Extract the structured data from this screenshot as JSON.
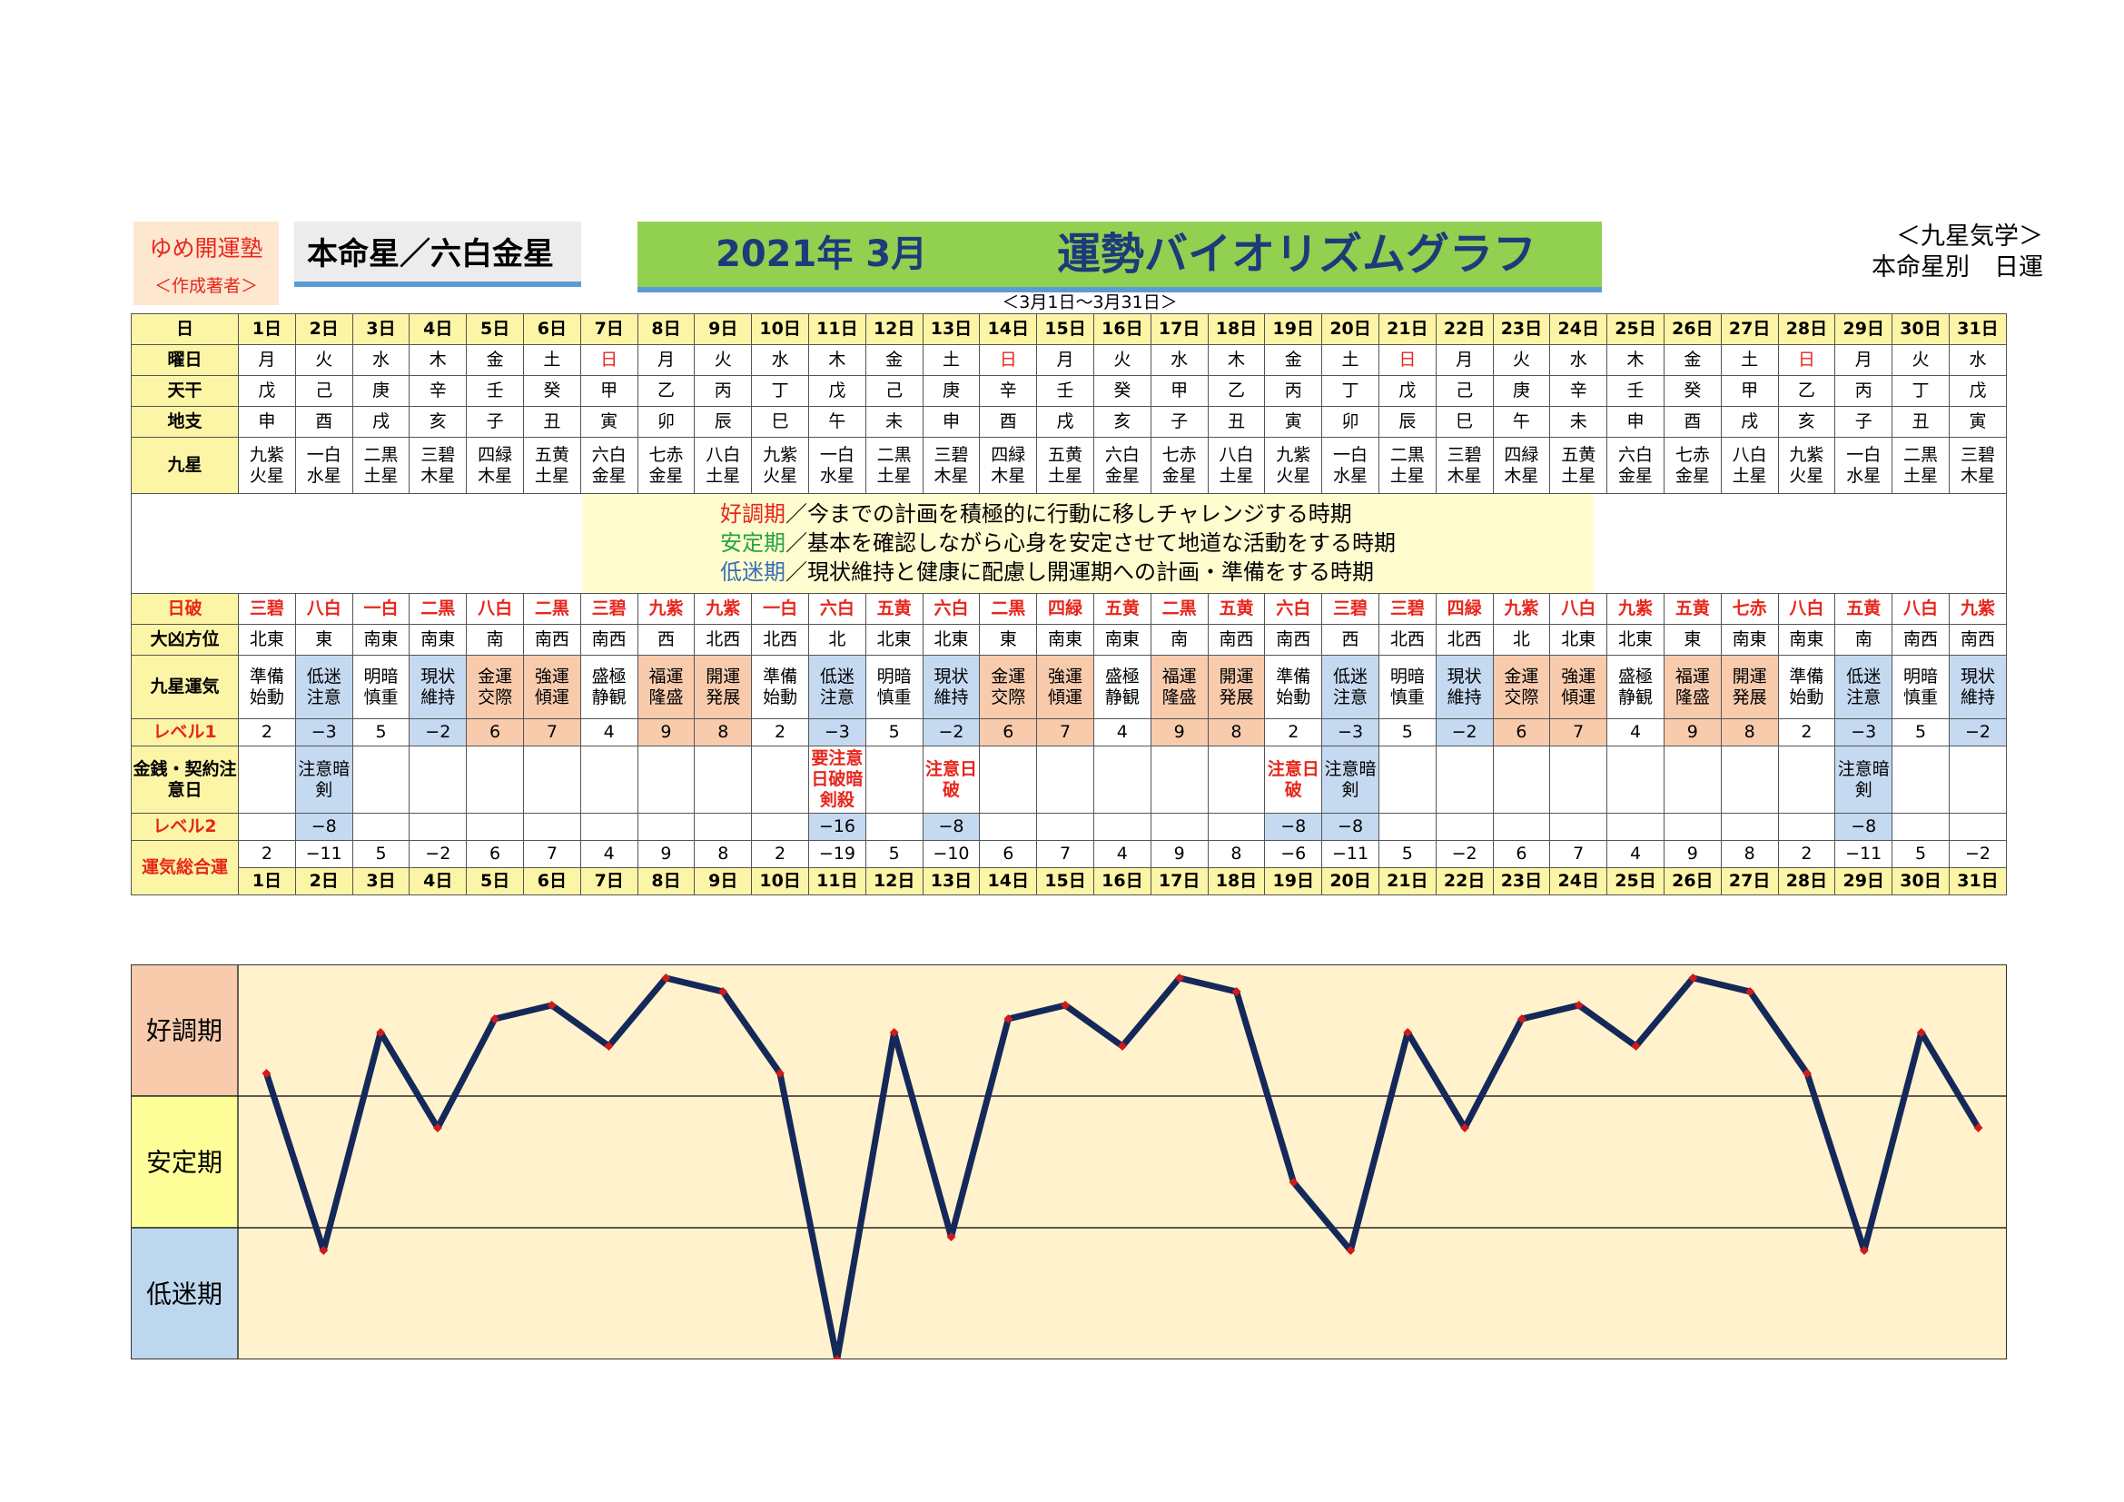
{
  "brand": {
    "name": "ゆめ開運塾",
    "sub": "＜作成著者＞"
  },
  "honmei": "本命星／六白金星",
  "title": {
    "month": "2021年 3月",
    "name": "運勢バイオリズムグラフ"
  },
  "daterange": "＜3月1日～3月31日＞",
  "kyusei": {
    "line1": "＜九星気学＞",
    "line2": "本命星別　日運"
  },
  "row_labels": {
    "day": "日",
    "weekday": "曜日",
    "tenkan": "天干",
    "chishi": "地支",
    "kyusei": "九星",
    "nippa": "日破",
    "daikyo": "大凶方位",
    "unki": "九星運気",
    "level1": "レベル1",
    "kinsen": "金銭・契約注意日",
    "level2": "レベル2",
    "sogo": "運気総合運"
  },
  "legend": [
    {
      "term": "好調期",
      "text": "／今までの計画を積極的に行動に移しチャレンジする時期"
    },
    {
      "term": "安定期",
      "text": "／基本を確認しながら心身を安定させて地道な活動をする時期"
    },
    {
      "term": "低迷期",
      "text": "／現状維持と健康に配慮し開運期への計画・準備をする時期"
    }
  ],
  "zones": [
    "好調期",
    "安定期",
    "低迷期"
  ],
  "days": [
    {
      "d": "1日",
      "w": "月",
      "t": "戊",
      "c": "申",
      "k1": "九紫",
      "k2": "火星",
      "np": "三碧",
      "dk": "北東",
      "u1": "準備",
      "u2": "始動",
      "l1": "2",
      "n": "",
      "l2": "",
      "s": "2"
    },
    {
      "d": "2日",
      "w": "火",
      "t": "己",
      "c": "酉",
      "k1": "一白",
      "k2": "水星",
      "np": "八白",
      "dk": "東",
      "u1": "低迷",
      "u2": "注意",
      "l1": "−3",
      "n": "注意暗剣",
      "l2": "−8",
      "s": "−11"
    },
    {
      "d": "3日",
      "w": "水",
      "t": "庚",
      "c": "戌",
      "k1": "二黒",
      "k2": "土星",
      "np": "一白",
      "dk": "南東",
      "u1": "明暗",
      "u2": "慎重",
      "l1": "5",
      "n": "",
      "l2": "",
      "s": "5"
    },
    {
      "d": "4日",
      "w": "木",
      "t": "辛",
      "c": "亥",
      "k1": "三碧",
      "k2": "木星",
      "np": "二黒",
      "dk": "南東",
      "u1": "現状",
      "u2": "維持",
      "l1": "−2",
      "n": "",
      "l2": "",
      "s": "−2"
    },
    {
      "d": "5日",
      "w": "金",
      "t": "壬",
      "c": "子",
      "k1": "四緑",
      "k2": "木星",
      "np": "八白",
      "dk": "南",
      "u1": "金運",
      "u2": "交際",
      "l1": "6",
      "n": "",
      "l2": "",
      "s": "6"
    },
    {
      "d": "6日",
      "w": "土",
      "t": "癸",
      "c": "丑",
      "k1": "五黄",
      "k2": "土星",
      "np": "二黒",
      "dk": "南西",
      "u1": "強運",
      "u2": "傾運",
      "l1": "7",
      "n": "",
      "l2": "",
      "s": "7"
    },
    {
      "d": "7日",
      "w": "日",
      "t": "甲",
      "c": "寅",
      "k1": "六白",
      "k2": "金星",
      "np": "三碧",
      "dk": "南西",
      "u1": "盛極",
      "u2": "静観",
      "l1": "4",
      "n": "",
      "l2": "",
      "s": "4"
    },
    {
      "d": "8日",
      "w": "月",
      "t": "乙",
      "c": "卯",
      "k1": "七赤",
      "k2": "金星",
      "np": "九紫",
      "dk": "西",
      "u1": "福運",
      "u2": "隆盛",
      "l1": "9",
      "n": "",
      "l2": "",
      "s": "9"
    },
    {
      "d": "9日",
      "w": "火",
      "t": "丙",
      "c": "辰",
      "k1": "八白",
      "k2": "土星",
      "np": "九紫",
      "dk": "北西",
      "u1": "開運",
      "u2": "発展",
      "l1": "8",
      "n": "",
      "l2": "",
      "s": "8"
    },
    {
      "d": "10日",
      "w": "水",
      "t": "丁",
      "c": "巳",
      "k1": "九紫",
      "k2": "火星",
      "np": "一白",
      "dk": "北西",
      "u1": "準備",
      "u2": "始動",
      "l1": "2",
      "n": "",
      "l2": "",
      "s": "2"
    },
    {
      "d": "11日",
      "w": "木",
      "t": "戊",
      "c": "午",
      "k1": "一白",
      "k2": "水星",
      "np": "六白",
      "dk": "北",
      "u1": "低迷",
      "u2": "注意",
      "l1": "−3",
      "n": "要注意日破暗剣殺",
      "l2": "−16",
      "s": "−19"
    },
    {
      "d": "12日",
      "w": "金",
      "t": "己",
      "c": "未",
      "k1": "二黒",
      "k2": "土星",
      "np": "五黄",
      "dk": "北東",
      "u1": "明暗",
      "u2": "慎重",
      "l1": "5",
      "n": "",
      "l2": "",
      "s": "5"
    },
    {
      "d": "13日",
      "w": "土",
      "t": "庚",
      "c": "申",
      "k1": "三碧",
      "k2": "木星",
      "np": "六白",
      "dk": "北東",
      "u1": "現状",
      "u2": "維持",
      "l1": "−2",
      "n": "注意日破",
      "l2": "−8",
      "s": "−10"
    },
    {
      "d": "14日",
      "w": "日",
      "t": "辛",
      "c": "酉",
      "k1": "四緑",
      "k2": "木星",
      "np": "二黒",
      "dk": "東",
      "u1": "金運",
      "u2": "交際",
      "l1": "6",
      "n": "",
      "l2": "",
      "s": "6"
    },
    {
      "d": "15日",
      "w": "月",
      "t": "壬",
      "c": "戌",
      "k1": "五黄",
      "k2": "土星",
      "np": "四緑",
      "dk": "南東",
      "u1": "強運",
      "u2": "傾運",
      "l1": "7",
      "n": "",
      "l2": "",
      "s": "7"
    },
    {
      "d": "16日",
      "w": "火",
      "t": "癸",
      "c": "亥",
      "k1": "六白",
      "k2": "金星",
      "np": "五黄",
      "dk": "南東",
      "u1": "盛極",
      "u2": "静観",
      "l1": "4",
      "n": "",
      "l2": "",
      "s": "4"
    },
    {
      "d": "17日",
      "w": "水",
      "t": "甲",
      "c": "子",
      "k1": "七赤",
      "k2": "金星",
      "np": "二黒",
      "dk": "南",
      "u1": "福運",
      "u2": "隆盛",
      "l1": "9",
      "n": "",
      "l2": "",
      "s": "9"
    },
    {
      "d": "18日",
      "w": "木",
      "t": "乙",
      "c": "丑",
      "k1": "八白",
      "k2": "土星",
      "np": "五黄",
      "dk": "南西",
      "u1": "開運",
      "u2": "発展",
      "l1": "8",
      "n": "",
      "l2": "",
      "s": "8"
    },
    {
      "d": "19日",
      "w": "金",
      "t": "丙",
      "c": "寅",
      "k1": "九紫",
      "k2": "火星",
      "np": "六白",
      "dk": "南西",
      "u1": "準備",
      "u2": "始動",
      "l1": "2",
      "n": "注意日破",
      "l2": "−8",
      "s": "−6"
    },
    {
      "d": "20日",
      "w": "土",
      "t": "丁",
      "c": "卯",
      "k1": "一白",
      "k2": "水星",
      "np": "三碧",
      "dk": "西",
      "u1": "低迷",
      "u2": "注意",
      "l1": "−3",
      "n": "注意暗剣",
      "l2": "−8",
      "s": "−11"
    },
    {
      "d": "21日",
      "w": "日",
      "t": "戊",
      "c": "辰",
      "k1": "二黒",
      "k2": "土星",
      "np": "三碧",
      "dk": "北西",
      "u1": "明暗",
      "u2": "慎重",
      "l1": "5",
      "n": "",
      "l2": "",
      "s": "5"
    },
    {
      "d": "22日",
      "w": "月",
      "t": "己",
      "c": "巳",
      "k1": "三碧",
      "k2": "木星",
      "np": "四緑",
      "dk": "北西",
      "u1": "現状",
      "u2": "維持",
      "l1": "−2",
      "n": "",
      "l2": "",
      "s": "−2"
    },
    {
      "d": "23日",
      "w": "火",
      "t": "庚",
      "c": "午",
      "k1": "四緑",
      "k2": "木星",
      "np": "九紫",
      "dk": "北",
      "u1": "金運",
      "u2": "交際",
      "l1": "6",
      "n": "",
      "l2": "",
      "s": "6"
    },
    {
      "d": "24日",
      "w": "水",
      "t": "辛",
      "c": "未",
      "k1": "五黄",
      "k2": "土星",
      "np": "八白",
      "dk": "北東",
      "u1": "強運",
      "u2": "傾運",
      "l1": "7",
      "n": "",
      "l2": "",
      "s": "7"
    },
    {
      "d": "25日",
      "w": "木",
      "t": "壬",
      "c": "申",
      "k1": "六白",
      "k2": "金星",
      "np": "九紫",
      "dk": "北東",
      "u1": "盛極",
      "u2": "静観",
      "l1": "4",
      "n": "",
      "l2": "",
      "s": "4"
    },
    {
      "d": "26日",
      "w": "金",
      "t": "癸",
      "c": "酉",
      "k1": "七赤",
      "k2": "金星",
      "np": "五黄",
      "dk": "東",
      "u1": "福運",
      "u2": "隆盛",
      "l1": "9",
      "n": "",
      "l2": "",
      "s": "9"
    },
    {
      "d": "27日",
      "w": "土",
      "t": "甲",
      "c": "戌",
      "k1": "八白",
      "k2": "土星",
      "np": "七赤",
      "dk": "南東",
      "u1": "開運",
      "u2": "発展",
      "l1": "8",
      "n": "",
      "l2": "",
      "s": "8"
    },
    {
      "d": "28日",
      "w": "日",
      "t": "乙",
      "c": "亥",
      "k1": "九紫",
      "k2": "火星",
      "np": "八白",
      "dk": "南東",
      "u1": "準備",
      "u2": "始動",
      "l1": "2",
      "n": "",
      "l2": "",
      "s": "2"
    },
    {
      "d": "29日",
      "w": "月",
      "t": "丙",
      "c": "子",
      "k1": "一白",
      "k2": "水星",
      "np": "五黄",
      "dk": "南",
      "u1": "低迷",
      "u2": "注意",
      "l1": "−3",
      "n": "注意暗剣",
      "l2": "−8",
      "s": "−11"
    },
    {
      "d": "30日",
      "w": "火",
      "t": "丁",
      "c": "丑",
      "k1": "二黒",
      "k2": "土星",
      "np": "八白",
      "dk": "南西",
      "u1": "明暗",
      "u2": "慎重",
      "l1": "5",
      "n": "",
      "l2": "",
      "s": "5"
    },
    {
      "d": "31日",
      "w": "水",
      "t": "戊",
      "c": "寅",
      "k1": "三碧",
      "k2": "木星",
      "np": "九紫",
      "dk": "南西",
      "u1": "現状",
      "u2": "維持",
      "l1": "−2",
      "n": "",
      "l2": "",
      "s": "−2"
    }
  ],
  "chart_data": {
    "type": "line",
    "series": [
      {
        "values": [
          2,
          -11,
          5,
          -2,
          6,
          7,
          4,
          9,
          8,
          2,
          -19,
          5,
          -10,
          6,
          7,
          4,
          9,
          8,
          -6,
          -11,
          5,
          -2,
          6,
          7,
          4,
          9,
          8,
          2,
          -11,
          5,
          -2
        ]
      }
    ],
    "x": [
      1,
      2,
      3,
      4,
      5,
      6,
      7,
      8,
      9,
      10,
      11,
      12,
      13,
      14,
      15,
      16,
      17,
      18,
      19,
      20,
      21,
      22,
      23,
      24,
      25,
      26,
      27,
      28,
      29,
      30,
      31
    ],
    "ylim": [
      -19,
      10
    ],
    "zones": [
      "好調期",
      "安定期",
      "低迷期"
    ],
    "grid": true,
    "colors": {
      "line": "#14285a",
      "marker": "#d11a1a",
      "bg": "#fff2cc",
      "good": "#f8cbad",
      "stable": "#ffff99",
      "low": "#bdd7ee"
    }
  }
}
